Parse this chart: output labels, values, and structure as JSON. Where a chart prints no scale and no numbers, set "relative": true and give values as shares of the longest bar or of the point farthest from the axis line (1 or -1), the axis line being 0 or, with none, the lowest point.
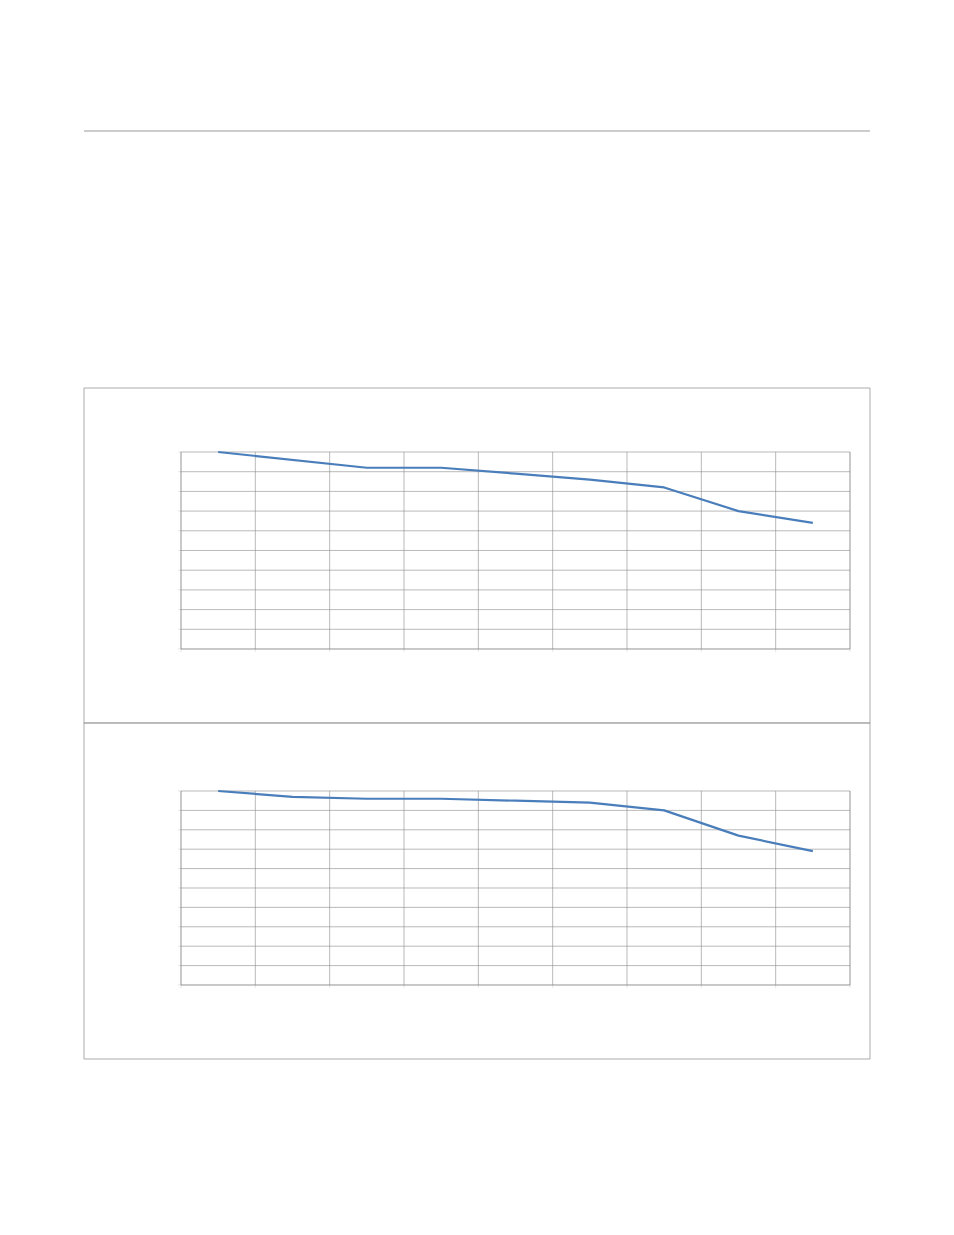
{
  "chart_data": [
    {
      "type": "line",
      "relative": true,
      "grid": true,
      "categories": [
        null,
        null,
        null,
        null,
        null,
        null,
        null,
        null,
        null
      ],
      "series": [
        {
          "color": "#4a7ebb",
          "values": [
            1,
            0.96,
            0.92,
            0.92,
            0.89,
            0.86,
            0.82,
            0.7,
            0.64
          ]
        }
      ]
    },
    {
      "type": "line",
      "relative": true,
      "grid": true,
      "categories": [
        null,
        null,
        null,
        null,
        null,
        null,
        null,
        null,
        null
      ],
      "series": [
        {
          "color": "#4a7ebb",
          "values": [
            1,
            0.97,
            0.96,
            0.96,
            0.95,
            0.94,
            0.9,
            0.77,
            0.69
          ]
        }
      ]
    }
  ]
}
